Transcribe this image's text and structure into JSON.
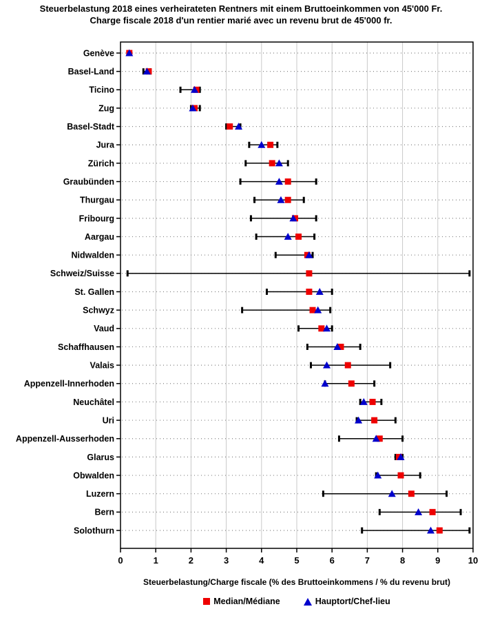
{
  "colors": {
    "median": "#ee0000",
    "hauptort": "#0000cc",
    "grid": "#c9c9c9",
    "dotted": "#808080",
    "axis": "#000000",
    "background": "#ffffff"
  },
  "chart_data": {
    "type": "scatter",
    "subtype": "dot-range-plot-with-min-max-whiskers",
    "title_line1": "Steuerbelastung 2018 eines verheirateten Rentners mit einem Bruttoeinkommen von 45'000 Fr.",
    "title_line2": "Charge fiscale 2018 d'un rentier marié avec un revenu brut de 45'000 fr.",
    "xlabel": "Steuerbelastung/Charge fiscale (% des Bruttoeinkommens / % du revenu brut)",
    "xlim": [
      0,
      10
    ],
    "x_ticks": [
      0,
      1,
      2,
      3,
      4,
      5,
      6,
      7,
      8,
      9,
      10
    ],
    "grid": {
      "vertical": "solid",
      "horizontal": "dotted"
    },
    "legend": {
      "position": "bottom",
      "entries": [
        {
          "label": "Median/Médiane",
          "marker": "square",
          "color": "#ee0000"
        },
        {
          "label": "Hauptort/Chef-lieu",
          "marker": "triangle",
          "color": "#0000cc"
        }
      ]
    },
    "rows": [
      {
        "canton": "Genève",
        "min": 0.2,
        "max": 0.3,
        "median": 0.25,
        "hauptort": 0.25
      },
      {
        "canton": "Basel-Land",
        "min": 0.65,
        "max": 0.85,
        "median": 0.8,
        "hauptort": 0.75
      },
      {
        "canton": "Ticino",
        "min": 1.7,
        "max": 2.25,
        "median": 2.15,
        "hauptort": 2.1
      },
      {
        "canton": "Zug",
        "min": 2.0,
        "max": 2.25,
        "median": 2.1,
        "hauptort": 2.05
      },
      {
        "canton": "Basel-Stadt",
        "min": 3.0,
        "max": 3.4,
        "median": 3.1,
        "hauptort": 3.35
      },
      {
        "canton": "Jura",
        "min": 3.65,
        "max": 4.45,
        "median": 4.25,
        "hauptort": 4.0
      },
      {
        "canton": "Zürich",
        "min": 3.55,
        "max": 4.75,
        "median": 4.3,
        "hauptort": 4.5
      },
      {
        "canton": "Graubünden",
        "min": 3.4,
        "max": 5.55,
        "median": 4.75,
        "hauptort": 4.5
      },
      {
        "canton": "Thurgau",
        "min": 3.8,
        "max": 5.2,
        "median": 4.75,
        "hauptort": 4.55
      },
      {
        "canton": "Fribourg",
        "min": 3.7,
        "max": 5.55,
        "median": 4.95,
        "hauptort": 4.9
      },
      {
        "canton": "Aargau",
        "min": 3.85,
        "max": 5.5,
        "median": 5.05,
        "hauptort": 4.75
      },
      {
        "canton": "Nidwalden",
        "min": 4.4,
        "max": 5.45,
        "median": 5.3,
        "hauptort": 5.35
      },
      {
        "canton": "Schweiz/Suisse",
        "min": 0.2,
        "max": 9.9,
        "median": 5.35,
        "hauptort": null
      },
      {
        "canton": "St. Gallen",
        "min": 4.15,
        "max": 6.0,
        "median": 5.35,
        "hauptort": 5.65
      },
      {
        "canton": "Schwyz",
        "min": 3.45,
        "max": 5.95,
        "median": 5.45,
        "hauptort": 5.6
      },
      {
        "canton": "Vaud",
        "min": 5.05,
        "max": 6.0,
        "median": 5.7,
        "hauptort": 5.85
      },
      {
        "canton": "Schaffhausen",
        "min": 5.3,
        "max": 6.8,
        "median": 6.25,
        "hauptort": 6.15
      },
      {
        "canton": "Valais",
        "min": 5.4,
        "max": 7.65,
        "median": 6.45,
        "hauptort": 5.85
      },
      {
        "canton": "Appenzell-Innerhoden",
        "min": 5.8,
        "max": 7.2,
        "median": 6.55,
        "hauptort": 5.8
      },
      {
        "canton": "Neuchâtel",
        "min": 6.8,
        "max": 7.4,
        "median": 7.15,
        "hauptort": 6.9
      },
      {
        "canton": "Uri",
        "min": 6.7,
        "max": 7.8,
        "median": 7.2,
        "hauptort": 6.75
      },
      {
        "canton": "Appenzell-Ausserhoden",
        "min": 6.2,
        "max": 8.0,
        "median": 7.35,
        "hauptort": 7.25
      },
      {
        "canton": "Glarus",
        "min": 7.8,
        "max": 8.0,
        "median": 7.9,
        "hauptort": 7.95
      },
      {
        "canton": "Obwalden",
        "min": 7.25,
        "max": 8.5,
        "median": 7.95,
        "hauptort": 7.3
      },
      {
        "canton": "Luzern",
        "min": 5.75,
        "max": 9.25,
        "median": 8.25,
        "hauptort": 7.7
      },
      {
        "canton": "Bern",
        "min": 7.35,
        "max": 9.65,
        "median": 8.85,
        "hauptort": 8.45
      },
      {
        "canton": "Solothurn",
        "min": 6.85,
        "max": 9.9,
        "median": 9.05,
        "hauptort": 8.8
      }
    ]
  }
}
